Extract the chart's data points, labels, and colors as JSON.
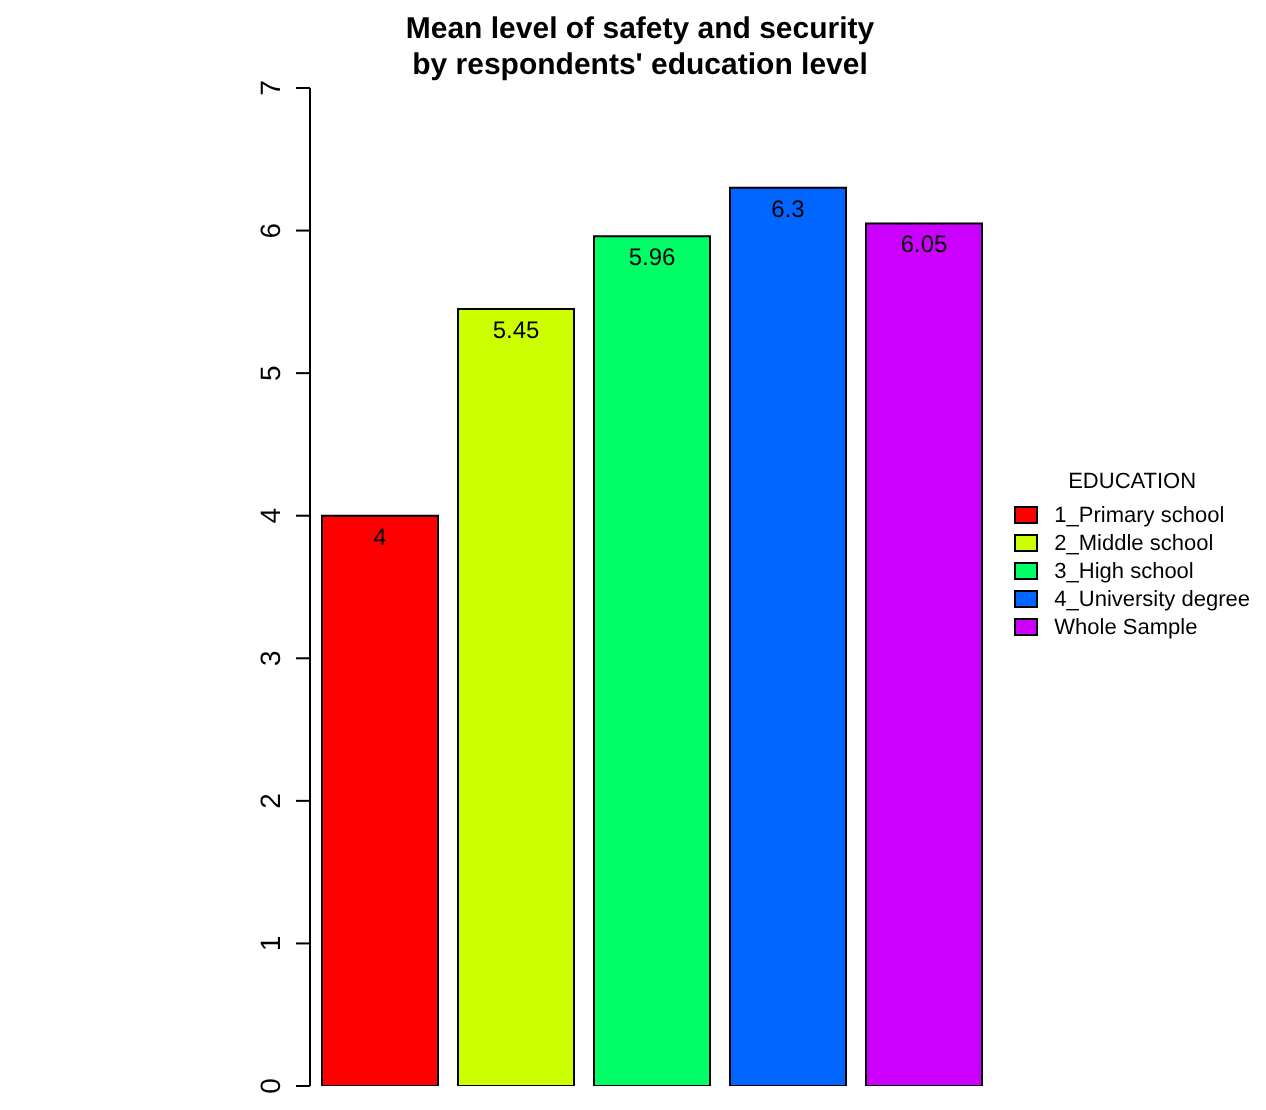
{
  "chart_data": {
    "type": "bar",
    "title": "Mean level of safety and security\nby respondents' education level",
    "categories": [
      null
    ],
    "series": [
      {
        "name": "1_Primary school",
        "color": "#ff0000",
        "values": [
          4
        ]
      },
      {
        "name": "2_Middle school",
        "color": "#ccff00",
        "values": [
          5.45
        ]
      },
      {
        "name": "3_High school",
        "color": "#00ff66",
        "values": [
          5.96
        ]
      },
      {
        "name": "4_University degree",
        "color": "#0066ff",
        "values": [
          6.3
        ]
      },
      {
        "name": "Whole Sample",
        "color": "#cc00ff",
        "values": [
          6.05
        ]
      }
    ],
    "ylim": [
      0,
      7
    ],
    "yticks": [
      0,
      1,
      2,
      3,
      4,
      5,
      6,
      7
    ],
    "data_labels": true,
    "legend": "right",
    "legend_title": "EDUCATION",
    "tick_labels": "y"
  }
}
